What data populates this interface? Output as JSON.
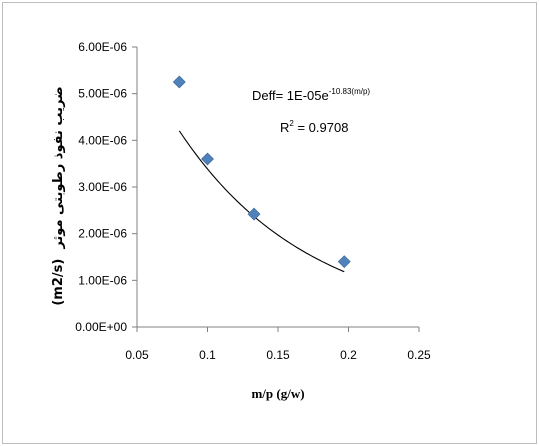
{
  "chart_data": {
    "type": "scatter",
    "xlabel": "m/p (g/w)",
    "ylabel_fa": "ضریب نفوذ رطوبتی موثر",
    "ylabel_unit": "(m2/s)",
    "xlim": [
      0.05,
      0.25
    ],
    "ylim": [
      0,
      6e-06
    ],
    "x_ticks": [
      "0.05",
      "0.1",
      "0.15",
      "0.2",
      "0.25"
    ],
    "y_ticks": [
      "0.00E+00",
      "1.00E-06",
      "2.00E-06",
      "3.00E-06",
      "4.00E-06",
      "5.00E-06",
      "6.00E-06"
    ],
    "series": [
      {
        "x": [
          0.08,
          0.1,
          0.133,
          0.197
        ],
        "y": [
          5.25e-06,
          3.6e-06,
          2.42e-06,
          1.4e-06
        ],
        "marker": "diamond",
        "color": "#4f81bd"
      }
    ],
    "trendline": {
      "type": "exponential",
      "a": 1e-05,
      "b": -10.83,
      "x_range": [
        0.08,
        0.197
      ],
      "color": "#000000"
    },
    "annotations": {
      "equation_prefix": "Deff= 1E-05e",
      "equation_exponent": "-10.83(m/p)",
      "r2_label": "R",
      "r2_sup": "2",
      "r2_value": " = 0.9708"
    },
    "grid": false,
    "legend": "none"
  }
}
